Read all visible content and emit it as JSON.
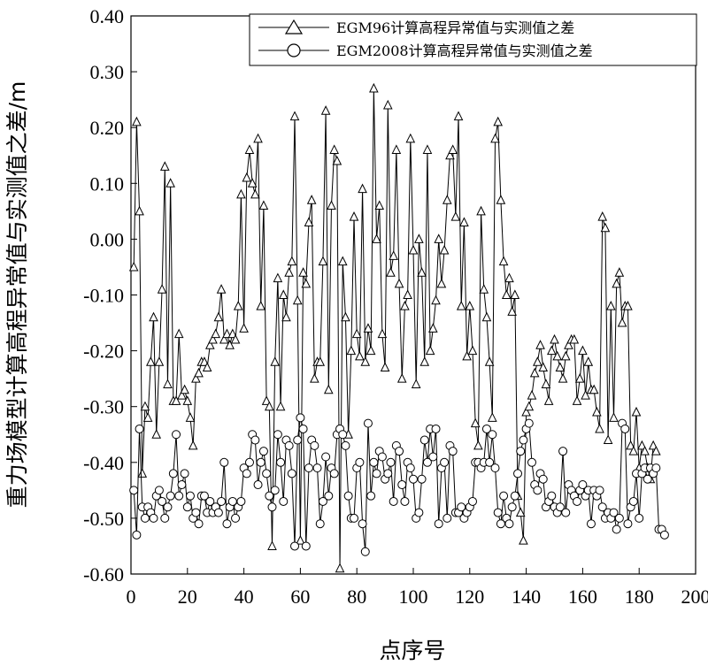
{
  "chart_data": {
    "type": "line",
    "xlabel": "点序号",
    "ylabel": "重力场模型计算高程异常值与实测值之差/m",
    "xlim": [
      0,
      200
    ],
    "ylim": [
      -0.6,
      0.4
    ],
    "xticks": [
      0,
      20,
      40,
      60,
      80,
      100,
      120,
      140,
      160,
      180,
      200
    ],
    "yticks": [
      "0.40",
      "0.30",
      "0.20",
      "0.10",
      "0.00",
      "-0.10",
      "-0.20",
      "-0.30",
      "-0.40",
      "-0.50",
      "-0.60"
    ],
    "legend_position": "top-right",
    "grid": false,
    "series": [
      {
        "name": "EGM96计算高程异常值与实测值之差",
        "marker": "triangle",
        "y": [
          -0.05,
          0.21,
          0.05,
          -0.42,
          -0.3,
          -0.32,
          -0.22,
          -0.14,
          -0.35,
          -0.22,
          -0.09,
          0.13,
          -0.26,
          0.1,
          -0.29,
          -0.29,
          -0.17,
          -0.28,
          -0.27,
          -0.29,
          -0.32,
          -0.37,
          -0.25,
          -0.24,
          -0.22,
          -0.22,
          -0.23,
          -0.19,
          -0.18,
          -0.17,
          -0.14,
          -0.09,
          -0.18,
          -0.17,
          -0.19,
          -0.17,
          -0.18,
          -0.12,
          0.08,
          -0.16,
          0.11,
          0.16,
          0.1,
          0.08,
          0.18,
          -0.12,
          0.06,
          -0.29,
          -0.3,
          -0.55,
          -0.22,
          -0.07,
          -0.3,
          -0.1,
          -0.14,
          -0.06,
          -0.04,
          0.22,
          -0.11,
          -0.54,
          -0.06,
          -0.08,
          0.03,
          0.07,
          -0.25,
          -0.22,
          -0.22,
          -0.04,
          0.23,
          -0.27,
          0.06,
          0.16,
          0.14,
          -0.59,
          -0.04,
          -0.14,
          -0.35,
          -0.2,
          0.04,
          -0.17,
          -0.21,
          0.09,
          -0.22,
          -0.16,
          -0.2,
          0.27,
          0.0,
          0.06,
          -0.17,
          -0.23,
          0.24,
          -0.06,
          -0.03,
          0.16,
          -0.08,
          -0.25,
          -0.12,
          -0.1,
          0.18,
          -0.02,
          -0.26,
          0.0,
          -0.06,
          -0.22,
          0.16,
          -0.2,
          -0.16,
          -0.11,
          0.0,
          -0.08,
          -0.02,
          0.07,
          0.15,
          0.16,
          0.04,
          0.22,
          -0.12,
          0.03,
          -0.21,
          -0.12,
          -0.2,
          -0.33,
          -0.37,
          0.05,
          -0.09,
          -0.14,
          -0.22,
          -0.32,
          0.18,
          0.21,
          0.07,
          -0.04,
          -0.1,
          -0.07,
          -0.13,
          -0.1,
          -0.46,
          -0.49,
          -0.54,
          -0.31,
          -0.3,
          -0.28,
          -0.24,
          -0.22,
          -0.19,
          -0.23,
          -0.26,
          -0.29,
          -0.2,
          -0.18,
          -0.21,
          -0.23,
          -0.25,
          -0.21,
          -0.19,
          -0.18,
          -0.18,
          -0.29,
          -0.25,
          -0.2,
          -0.28,
          -0.22,
          -0.27,
          -0.27,
          -0.31,
          -0.34,
          0.04,
          0.02,
          -0.36,
          -0.12,
          -0.32,
          -0.08,
          -0.06,
          -0.15,
          -0.12,
          -0.12,
          -0.37,
          -0.38,
          -0.31,
          -0.41,
          -0.37,
          -0.38,
          -0.41,
          -0.43,
          -0.37,
          -0.38
        ]
      },
      {
        "name": "EGM2008计算高程异常值与实测值之差",
        "marker": "circle",
        "y": [
          -0.45,
          -0.53,
          -0.34,
          -0.48,
          -0.5,
          -0.48,
          -0.49,
          -0.5,
          -0.46,
          -0.45,
          -0.47,
          -0.5,
          -0.48,
          -0.46,
          -0.42,
          -0.35,
          -0.46,
          -0.44,
          -0.42,
          -0.48,
          -0.46,
          -0.5,
          -0.49,
          -0.51,
          -0.46,
          -0.46,
          -0.49,
          -0.47,
          -0.49,
          -0.48,
          -0.49,
          -0.47,
          -0.4,
          -0.51,
          -0.48,
          -0.47,
          -0.5,
          -0.48,
          -0.47,
          -0.41,
          -0.42,
          -0.4,
          -0.35,
          -0.36,
          -0.44,
          -0.4,
          -0.38,
          -0.42,
          -0.46,
          -0.48,
          -0.45,
          -0.35,
          -0.4,
          -0.47,
          -0.36,
          -0.37,
          -0.42,
          -0.55,
          -0.36,
          -0.32,
          -0.34,
          -0.55,
          -0.41,
          -0.36,
          -0.37,
          -0.41,
          -0.51,
          -0.47,
          -0.39,
          -0.46,
          -0.41,
          -0.42,
          -0.35,
          -0.34,
          -0.35,
          -0.37,
          -0.46,
          -0.5,
          -0.5,
          -0.41,
          -0.4,
          -0.51,
          -0.56,
          -0.33,
          -0.46,
          -0.4,
          -0.42,
          -0.38,
          -0.39,
          -0.43,
          -0.42,
          -0.4,
          -0.47,
          -0.37,
          -0.38,
          -0.44,
          -0.47,
          -0.4,
          -0.41,
          -0.43,
          -0.5,
          -0.49,
          -0.43,
          -0.36,
          -0.4,
          -0.34,
          -0.39,
          -0.34,
          -0.51,
          -0.41,
          -0.4,
          -0.5,
          -0.37,
          -0.38,
          -0.49,
          -0.49,
          -0.48,
          -0.5,
          -0.49,
          -0.48,
          -0.47,
          -0.4,
          -0.4,
          -0.41,
          -0.4,
          -0.34,
          -0.4,
          -0.35,
          -0.41,
          -0.49,
          -0.51,
          -0.46,
          -0.5,
          -0.51,
          -0.48,
          -0.46,
          -0.42,
          -0.38,
          -0.36,
          -0.34,
          -0.33,
          -0.4,
          -0.44,
          -0.45,
          -0.42,
          -0.43,
          -0.48,
          -0.47,
          -0.46,
          -0.48,
          -0.49,
          -0.48,
          -0.38,
          -0.49,
          -0.44,
          -0.45,
          -0.46,
          -0.47,
          -0.45,
          -0.44,
          -0.46,
          -0.45,
          -0.51,
          -0.45,
          -0.46,
          -0.45,
          -0.48,
          -0.5,
          -0.49,
          -0.5,
          -0.49,
          -0.52,
          -0.5,
          -0.33,
          -0.34,
          -0.51,
          -0.48,
          -0.47,
          -0.42,
          -0.5,
          -0.42,
          -0.41,
          -0.43,
          -0.41,
          -0.42,
          -0.41,
          -0.52,
          -0.52,
          -0.53
        ]
      }
    ]
  }
}
